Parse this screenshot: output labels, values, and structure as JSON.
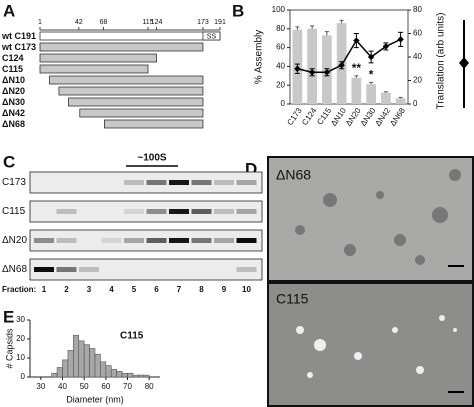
{
  "panel_labels": [
    "A",
    "B",
    "C",
    "D",
    "E"
  ],
  "construct_map": {
    "ruler": [
      1,
      42,
      68,
      115,
      124,
      173,
      191
    ],
    "constructs": [
      {
        "label": "wt C191",
        "start": 1,
        "end": 191,
        "tag": "SS",
        "tag_start": 173
      },
      {
        "label": "wt C173",
        "start": 1,
        "end": 173
      },
      {
        "label": "C124",
        "start": 1,
        "end": 124
      },
      {
        "label": "C115",
        "start": 1,
        "end": 115
      },
      {
        "label": "ΔN10",
        "start": 11,
        "end": 173
      },
      {
        "label": "ΔN20",
        "start": 21,
        "end": 173
      },
      {
        "label": "ΔN30",
        "start": 31,
        "end": 173
      },
      {
        "label": "ΔN42",
        "start": 43,
        "end": 173
      },
      {
        "label": "ΔN68",
        "start": 69,
        "end": 173
      }
    ]
  },
  "chart_data": [
    {
      "type": "bar_line",
      "ylabel": "% Assembly",
      "y2label": "Translation (arb units)",
      "categories": [
        "C173",
        "C124",
        "C115",
        "ΔN10",
        "ΔN20",
        "ΔN30",
        "ΔN42",
        "ΔN68"
      ],
      "series": [
        {
          "color": "#c8c8c8",
          "values": [
            79,
            80,
            73,
            86,
            28,
            21,
            12,
            6
          ],
          "errors": [
            3,
            3,
            4,
            3,
            2,
            2,
            1,
            1
          ]
        },
        {
          "type": "line",
          "axis": "y2",
          "color": "#000000",
          "marker": "diamond",
          "values": [
            30,
            27,
            27,
            33,
            54,
            40,
            49,
            55
          ],
          "errors": [
            4,
            3,
            3,
            3,
            6,
            5,
            3,
            6
          ]
        }
      ],
      "annotations": [
        {
          "text": "**",
          "at": "ΔN20"
        },
        {
          "text": "*",
          "at": "ΔN30"
        }
      ],
      "ylim": [
        0,
        100
      ],
      "yticks": [
        0,
        20,
        40,
        60,
        80,
        100
      ],
      "y2lim": [
        0,
        80
      ],
      "y2ticks": [
        0,
        20,
        40,
        60,
        80
      ]
    },
    {
      "type": "histogram",
      "title": "C115",
      "xlabel": "Diameter (nm)",
      "ylabel": "# Capsids",
      "bins": [
        35,
        37.5,
        40,
        42.5,
        45,
        47.5,
        50,
        52.5,
        55,
        57.5,
        60,
        62.5,
        65,
        67.5,
        70,
        72.5,
        75,
        77.5,
        80
      ],
      "values": [
        2,
        5,
        9,
        14,
        22,
        19,
        17,
        15,
        12,
        8,
        6,
        4,
        3,
        2,
        2,
        1,
        1,
        1
      ],
      "color": "#a8a8a8",
      "xlim": [
        25,
        85
      ],
      "xticks": [
        30,
        40,
        50,
        60,
        70,
        80
      ],
      "ylim": [
        0,
        30
      ],
      "yticks": [
        0,
        10,
        20,
        30
      ]
    }
  ],
  "gel": {
    "label": "~100S",
    "lanes": [
      "C173",
      "C115",
      "ΔN20",
      "ΔN68"
    ],
    "fraction_label": "Fraction:",
    "fractions": [
      1,
      2,
      3,
      4,
      5,
      6,
      7,
      8,
      9,
      10
    ]
  },
  "micrographs": {
    "labels": [
      "ΔN68",
      "C115"
    ]
  }
}
